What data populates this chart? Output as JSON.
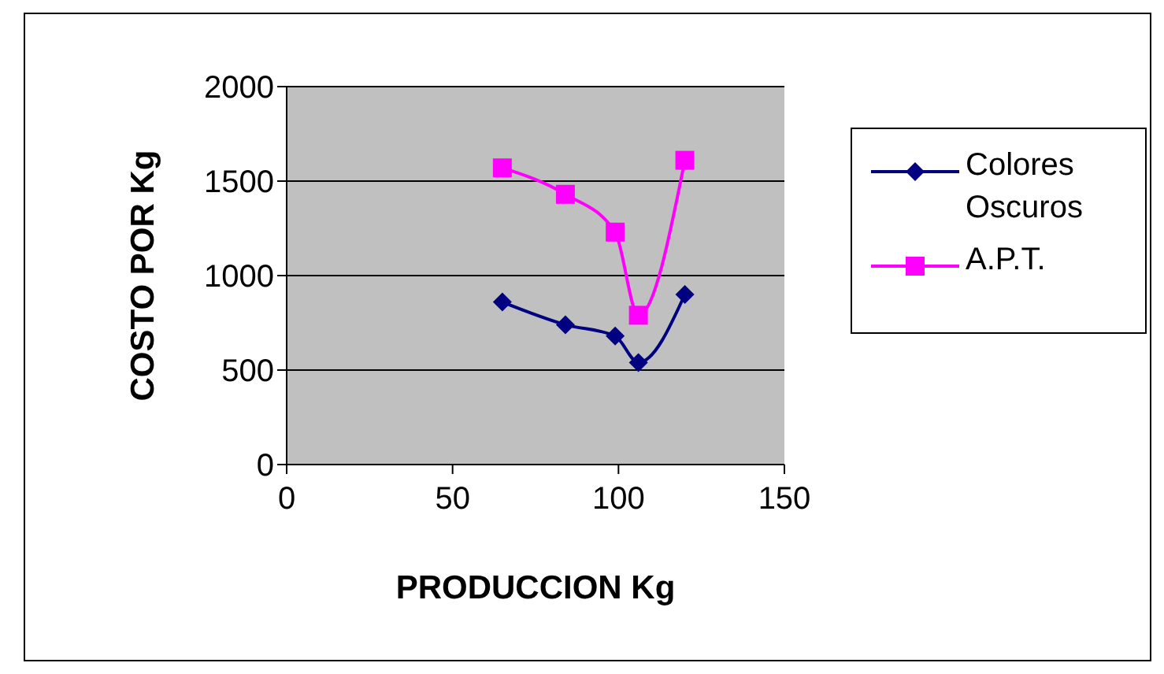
{
  "chart_data": {
    "type": "line",
    "xlabel": "PRODUCCION Kg",
    "ylabel": "COSTO POR Kg",
    "x": [
      65,
      84,
      99,
      106,
      120
    ],
    "series": [
      {
        "name": "Colores Oscuros",
        "color": "#000080",
        "marker": "diamond",
        "values": [
          860,
          740,
          680,
          540,
          900
        ]
      },
      {
        "name": "A.P.T.",
        "color": "#ff00ff",
        "marker": "square",
        "values": [
          1570,
          1430,
          1230,
          790,
          1610
        ]
      }
    ],
    "xlim": [
      0,
      150
    ],
    "xticks": [
      0,
      50,
      100,
      150
    ],
    "ylim": [
      0,
      2000
    ],
    "yticks": [
      0,
      500,
      1000,
      1500,
      2000
    ],
    "grid": "y",
    "legend": "right"
  }
}
